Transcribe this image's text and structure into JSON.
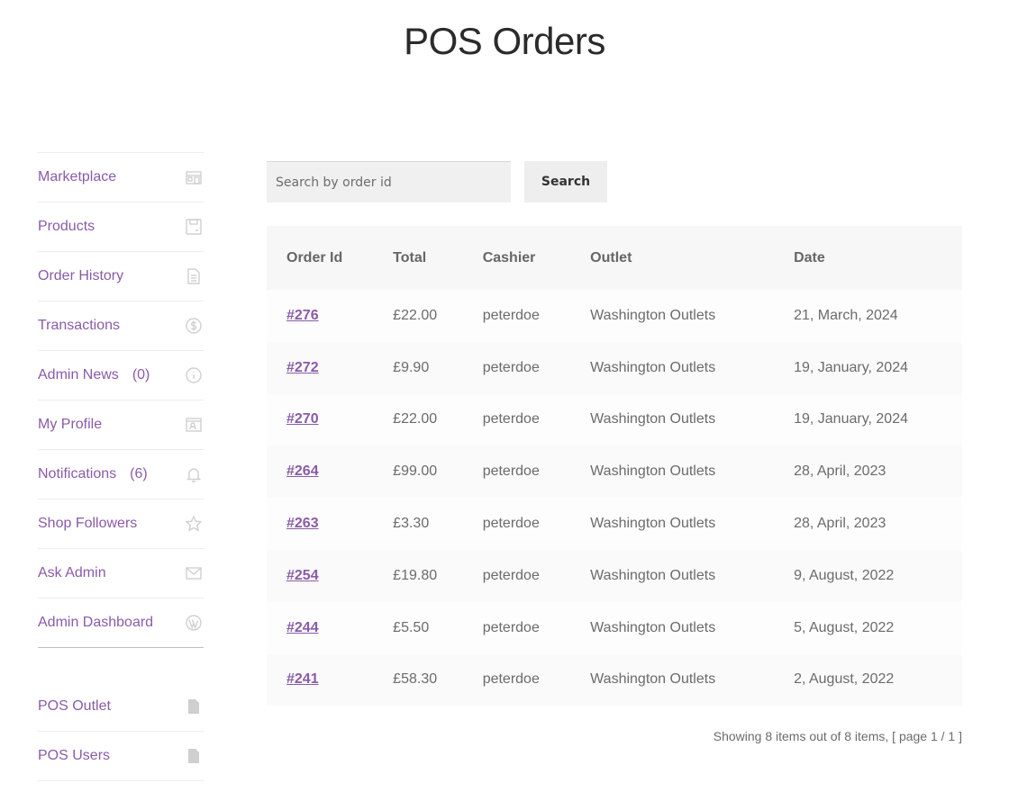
{
  "page": {
    "title": "POS Orders"
  },
  "sidebar": {
    "items": [
      {
        "label": "Marketplace",
        "icon": "store-icon"
      },
      {
        "label": "Products",
        "icon": "product-box-icon"
      },
      {
        "label": "Order History",
        "icon": "document-icon"
      },
      {
        "label": "Transactions",
        "icon": "dollar-circle-icon"
      },
      {
        "label": "Admin News",
        "count": "(0)",
        "icon": "info-circle-icon"
      },
      {
        "label": "My Profile",
        "icon": "profile-card-icon"
      },
      {
        "label": "Notifications",
        "count": "(6)",
        "icon": "bell-icon"
      },
      {
        "label": "Shop Followers",
        "icon": "star-icon"
      },
      {
        "label": "Ask Admin",
        "icon": "envelope-icon"
      },
      {
        "label": "Admin Dashboard",
        "icon": "wordpress-icon"
      }
    ],
    "pos_items": [
      {
        "label": "POS Outlet",
        "icon": "file-icon"
      },
      {
        "label": "POS Users",
        "icon": "file-icon"
      }
    ]
  },
  "search": {
    "placeholder": "Search by order id",
    "value": "",
    "button_label": "Search"
  },
  "table": {
    "headers": [
      "Order Id",
      "Total",
      "Cashier",
      "Outlet",
      "Date"
    ],
    "rows": [
      {
        "order_id": "#276",
        "total": "£22.00",
        "cashier": "peterdoe",
        "outlet": "Washington Outlets",
        "date": "21, March, 2024"
      },
      {
        "order_id": "#272",
        "total": "£9.90",
        "cashier": "peterdoe",
        "outlet": "Washington Outlets",
        "date": "19, January, 2024"
      },
      {
        "order_id": "#270",
        "total": "£22.00",
        "cashier": "peterdoe",
        "outlet": "Washington Outlets",
        "date": "19, January, 2024"
      },
      {
        "order_id": "#264",
        "total": "£99.00",
        "cashier": "peterdoe",
        "outlet": "Washington Outlets",
        "date": "28, April, 2023"
      },
      {
        "order_id": "#263",
        "total": "£3.30",
        "cashier": "peterdoe",
        "outlet": "Washington Outlets",
        "date": "28, April, 2023"
      },
      {
        "order_id": "#254",
        "total": "£19.80",
        "cashier": "peterdoe",
        "outlet": "Washington Outlets",
        "date": "9, August, 2022"
      },
      {
        "order_id": "#244",
        "total": "£5.50",
        "cashier": "peterdoe",
        "outlet": "Washington Outlets",
        "date": "5, August, 2022"
      },
      {
        "order_id": "#241",
        "total": "£58.30",
        "cashier": "peterdoe",
        "outlet": "Washington Outlets",
        "date": "2, August, 2022"
      }
    ]
  },
  "pagination": {
    "info": "Showing 8 items out of 8 items, [ page 1 / 1 ]"
  },
  "colors": {
    "link": "#8a5ba8",
    "text": "#6b6b6b",
    "header_bg": "#f7f7f7",
    "icon": "#d0d0d0"
  }
}
